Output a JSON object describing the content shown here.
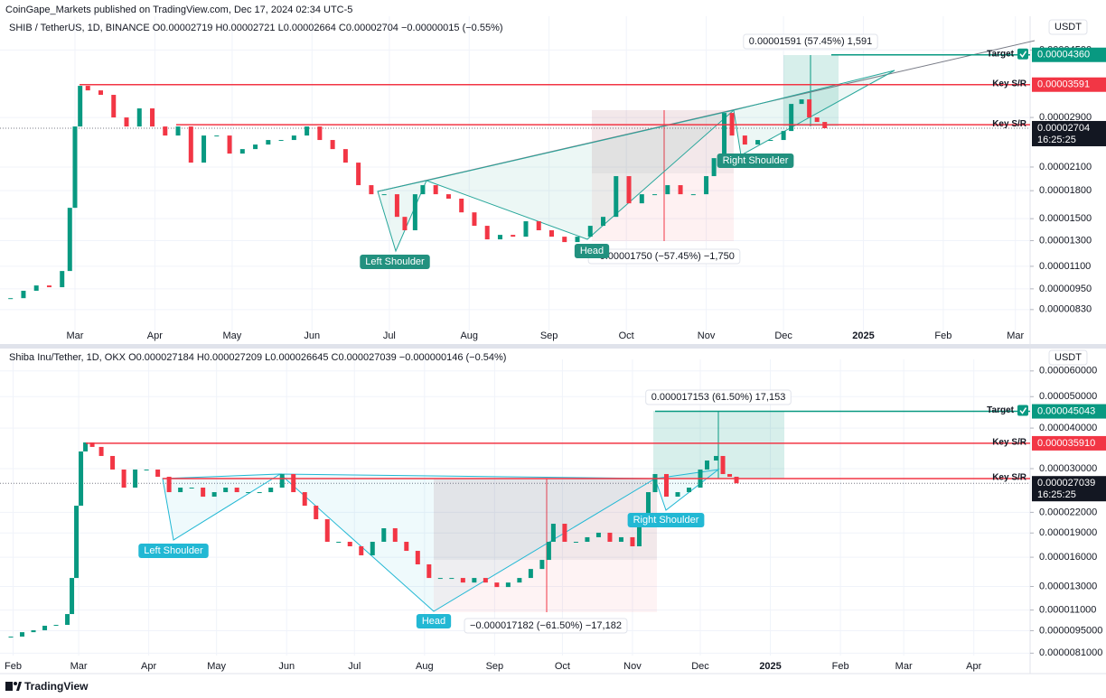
{
  "header": {
    "publisher": "CoinGape_Markets published on TradingView.com, Dec 17, 2024 02:34 UTC-5"
  },
  "footer": {
    "brand": "TradingView"
  },
  "chart_data": [
    {
      "type": "candlestick",
      "title": "SHIB / TetherUS, 1D, BINANCE  O0.00002719  H0.00002721  L0.00002664  C0.00002704  −0.00000015 (−0.55%)",
      "currency": "USDT",
      "log_scale": true,
      "grid": true,
      "up_color": "#089981",
      "down_color": "#f23645",
      "x": [
        35,
        40,
        45,
        50,
        55,
        58,
        60,
        62,
        65,
        70,
        75,
        80,
        85,
        90,
        95,
        100,
        105,
        110,
        115,
        120,
        125,
        130,
        135,
        140,
        145,
        150,
        155,
        160,
        165,
        170,
        175,
        180,
        185,
        188,
        192,
        195,
        200,
        205,
        210,
        215,
        220,
        225,
        230,
        235,
        240,
        245,
        250,
        255,
        260,
        265,
        270,
        275,
        280,
        285,
        290,
        295,
        300,
        305,
        308,
        312,
        315,
        320,
        325,
        330,
        335,
        338,
        342,
        345,
        348,
        351
      ],
      "values": [
        8.94e-06,
        9.38e-06,
        9.71e-06,
        9.6e-06,
        1.067e-05,
        1.61e-05,
        2.734e-05,
        3.563e-05,
        3.459e-05,
        3.36e-05,
        2.9e-05,
        2.734e-05,
        3.076e-05,
        2.734e-05,
        2.578e-05,
        2.734e-05,
        2.161e-05,
        2.578e-05,
        2.578e-05,
        2.292e-05,
        2.36e-05,
        2.431e-05,
        2.504e-05,
        2.504e-05,
        2.578e-05,
        2.734e-05,
        2.504e-05,
        2.36e-05,
        2.161e-05,
        1.866e-05,
        1.759e-05,
        1.759e-05,
        1.518e-05,
        1.391e-05,
        1.759e-05,
        1.866e-05,
        1.759e-05,
        1.709e-05,
        1.563e-05,
        1.432e-05,
        1.311e-05,
        1.35e-05,
        1.334e-05,
        1.475e-05,
        1.391e-05,
        1.334e-05,
        1.288e-05,
        1.334e-05,
        1.432e-05,
        1.518e-05,
        1.979e-05,
        1.658e-05,
        1.759e-05,
        1.759e-05,
        1.866e-05,
        1.759e-05,
        1.759e-05,
        1.979e-05,
        2.225e-05,
        2.986e-05,
        2.578e-05,
        2.431e-05,
        2.504e-05,
        2.504e-05,
        2.655e-05,
        3.167e-05,
        3.262e-05,
        2.9e-05,
        2.816e-05,
        2.704e-05
      ],
      "xlim": [
        30.9,
        430.7
      ],
      "ylim": [
        6.67e-06,
        5.54e-05
      ],
      "xticks": [
        {
          "value": 60,
          "label": "Mar"
        },
        {
          "value": 91,
          "label": "Apr"
        },
        {
          "value": 121,
          "label": "May"
        },
        {
          "value": 152,
          "label": "Jun"
        },
        {
          "value": 182,
          "label": "Jul"
        },
        {
          "value": 213,
          "label": "Aug"
        },
        {
          "value": 244,
          "label": "Sep"
        },
        {
          "value": 274,
          "label": "Oct"
        },
        {
          "value": 305,
          "label": "Nov"
        },
        {
          "value": 335,
          "label": "Dec"
        },
        {
          "value": 366,
          "label": "2025"
        },
        {
          "value": 397,
          "label": "Feb"
        },
        {
          "value": 425,
          "label": "Mar"
        }
      ],
      "yticks": [
        {
          "value": 4.5e-05,
          "label": "0.00004500"
        },
        {
          "value": 2.9e-05,
          "label": "0.00002900"
        },
        {
          "value": 2.1e-05,
          "label": "0.00002100"
        },
        {
          "value": 1.8e-05,
          "label": "0.00001800"
        },
        {
          "value": 1.5e-05,
          "label": "0.00001500"
        },
        {
          "value": 1.3e-05,
          "label": "0.00001300"
        },
        {
          "value": 1.1e-05,
          "label": "0.00001100"
        },
        {
          "value": 9.5e-06,
          "label": "0.00000950"
        },
        {
          "value": 8.3e-06,
          "label": "0.00000830"
        }
      ],
      "levels": [
        {
          "label": "Target",
          "value": 4.36e-05,
          "value_label": "0.00004360",
          "color": "#089981"
        },
        {
          "label": "Key S/R",
          "value": 3.591e-05,
          "value_label": "0.00003591",
          "color": "#f23645"
        },
        {
          "label": "Key S/R",
          "value": 2.766e-05,
          "color": "#f23645"
        }
      ],
      "last_price": {
        "value": 2.704e-05,
        "label": "0.00002704",
        "countdown": "16:25:25"
      },
      "annotations": {
        "measure_up": "0.00001591 (57.45%) 1,591",
        "measure_down": "−0.00001750 (−57.45%) −1,750",
        "patterns": [
          "Left Shoulder",
          "Head",
          "Right Shoulder"
        ]
      }
    },
    {
      "type": "candlestick",
      "title": "Shiba Inu/Tether, 1D, OKX  O0.000027184  H0.000027209  L0.000026645  C0.000027039  −0.000000146 (−0.54%)",
      "currency": "USDT",
      "log_scale": true,
      "grid": true,
      "up_color": "#089981",
      "down_color": "#f23645",
      "x": [
        30,
        35,
        40,
        45,
        50,
        55,
        57,
        59,
        61,
        63,
        66,
        70,
        75,
        80,
        85,
        90,
        95,
        100,
        105,
        110,
        115,
        120,
        125,
        130,
        135,
        140,
        145,
        150,
        155,
        160,
        165,
        170,
        175,
        180,
        185,
        190,
        195,
        200,
        205,
        210,
        215,
        220,
        225,
        230,
        235,
        240,
        245,
        250,
        255,
        260,
        265,
        268,
        270,
        275,
        280,
        285,
        290,
        295,
        300,
        305,
        308,
        312,
        315,
        320,
        325,
        330,
        335,
        338,
        342,
        345,
        348,
        351
      ],
      "values": [
        9.11e-06,
        9.4e-06,
        9.53e-06,
        9.84e-06,
        9.9e-06,
        1.069e-05,
        1.381e-05,
        2.306e-05,
        3.389e-05,
        3.613e-05,
        3.5e-05,
        3.282e-05,
        2.981e-05,
        2.622e-05,
        2.981e-05,
        2.981e-05,
        2.832e-05,
        2.539e-05,
        2.622e-05,
        2.622e-05,
        2.459e-05,
        2.539e-05,
        2.622e-05,
        2.539e-05,
        2.539e-05,
        2.539e-05,
        2.622e-05,
        2.887e-05,
        2.539e-05,
        2.306e-05,
        2.095e-05,
        1.785e-05,
        1.785e-05,
        1.729e-05,
        1.622e-05,
        1.785e-05,
        1.965e-05,
        1.785e-05,
        1.674e-05,
        1.521e-05,
        1.381e-05,
        1.381e-05,
        1.381e-05,
        1.337e-05,
        1.381e-05,
        1.337e-05,
        1.295e-05,
        1.337e-05,
        1.381e-05,
        1.472e-05,
        1.57e-05,
        1.785e-05,
        2.029e-05,
        1.785e-05,
        1.785e-05,
        1.844e-05,
        1.904e-05,
        1.785e-05,
        1.844e-05,
        1.729e-05,
        2.095e-05,
        2.539e-05,
        2.887e-05,
        2.459e-05,
        2.539e-05,
        2.622e-05,
        2.981e-05,
        3.178e-05,
        3.282e-05,
        2.887e-05,
        2.832e-05,
        2.7039e-05
      ],
      "xlim": [
        25.2,
        480.9
      ],
      "ylim": [
        7.28e-06,
        6.43e-05
      ],
      "xticks": [
        {
          "value": 31,
          "label": "Feb"
        },
        {
          "value": 60,
          "label": "Mar"
        },
        {
          "value": 91,
          "label": "Apr"
        },
        {
          "value": 121,
          "label": "May"
        },
        {
          "value": 152,
          "label": "Jun"
        },
        {
          "value": 182,
          "label": "Jul"
        },
        {
          "value": 213,
          "label": "Aug"
        },
        {
          "value": 244,
          "label": "Sep"
        },
        {
          "value": 274,
          "label": "Oct"
        },
        {
          "value": 305,
          "label": "Nov"
        },
        {
          "value": 335,
          "label": "Dec"
        },
        {
          "value": 366,
          "label": "2025"
        },
        {
          "value": 397,
          "label": "Feb"
        },
        {
          "value": 425,
          "label": "Mar"
        },
        {
          "value": 456,
          "label": "Apr"
        }
      ],
      "yticks": [
        {
          "value": 6e-05,
          "label": "0.000060000"
        },
        {
          "value": 5e-05,
          "label": "0.000050000"
        },
        {
          "value": 4e-05,
          "label": "0.000040000"
        },
        {
          "value": 3e-05,
          "label": "0.000030000"
        },
        {
          "value": 2.2e-05,
          "label": "0.000022000"
        },
        {
          "value": 1.9e-05,
          "label": "0.000019000"
        },
        {
          "value": 1.6e-05,
          "label": "0.000016000"
        },
        {
          "value": 1.3e-05,
          "label": "0.000013000"
        },
        {
          "value": 1.1e-05,
          "label": "0.000011000"
        },
        {
          "value": 9.5e-06,
          "label": "0.0000095000"
        },
        {
          "value": 8.1e-06,
          "label": "0.0000081000"
        }
      ],
      "levels": [
        {
          "label": "Target",
          "value": 4.5043e-05,
          "value_label": "0.000045043",
          "color": "#089981"
        },
        {
          "label": "Key S/R",
          "value": 3.591e-05,
          "value_label": "0.000035910",
          "color": "#f23645"
        },
        {
          "label": "Key S/R",
          "value": 2.796e-05,
          "color": "#f23645"
        }
      ],
      "last_price": {
        "value": 2.7039e-05,
        "label": "0.000027039",
        "countdown": "16:25:25"
      },
      "annotations": {
        "measure_up": "0.000017153 (61.50%) 17,153",
        "measure_down": "−0.000017182 (−61.50%) −17,182",
        "patterns": [
          "Left Shoulder",
          "Head",
          "Right Shoulder"
        ]
      }
    }
  ]
}
